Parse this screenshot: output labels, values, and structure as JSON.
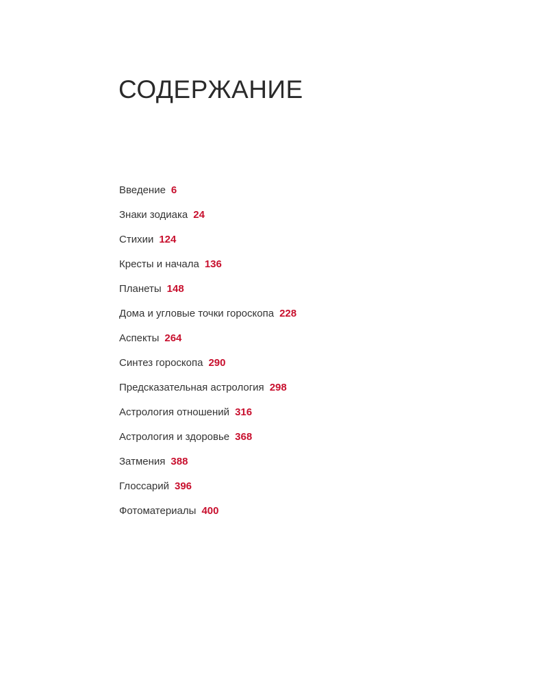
{
  "title": "СОДЕРЖАНИЕ",
  "accent_color": "#c8102e",
  "entries": [
    {
      "label": "Введение",
      "page": "6"
    },
    {
      "label": "Знаки зодиака",
      "page": "24"
    },
    {
      "label": "Стихии",
      "page": "124"
    },
    {
      "label": "Кресты и начала",
      "page": "136"
    },
    {
      "label": "Планеты",
      "page": "148"
    },
    {
      "label": "Дома и угловые точки гороскопа",
      "page": "228"
    },
    {
      "label": "Аспекты",
      "page": "264"
    },
    {
      "label": "Синтез гороскопа",
      "page": "290"
    },
    {
      "label": "Предсказательная астрология",
      "page": "298"
    },
    {
      "label": "Астрология отношений",
      "page": "316"
    },
    {
      "label": "Астрология и здоровье",
      "page": "368"
    },
    {
      "label": "Затмения",
      "page": "388"
    },
    {
      "label": "Глоссарий",
      "page": "396"
    },
    {
      "label": "Фотоматериалы",
      "page": "400"
    }
  ]
}
